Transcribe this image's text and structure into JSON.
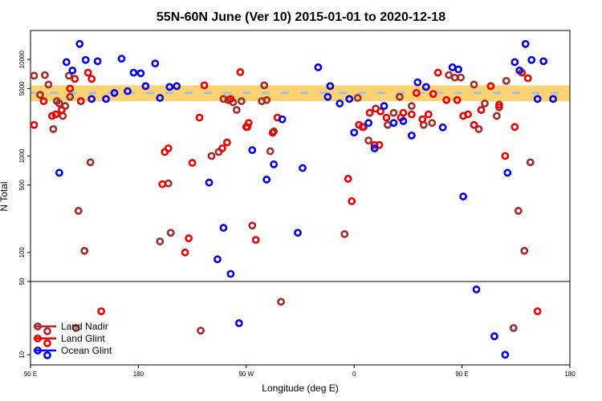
{
  "chart_data": {
    "type": "scatter",
    "title": "55N-60N June (Ver 10)   2015-01-01 to 2020-12-18",
    "xlabel": "Longitude (deg E)",
    "ylabel": "N Total",
    "x_ticks": [
      {
        "value": 90,
        "label": "90 E"
      },
      {
        "value": 180,
        "label": "180"
      },
      {
        "value": 270,
        "label": "90 W"
      },
      {
        "value": 360,
        "label": "0"
      },
      {
        "value": 450,
        "label": "90 E"
      },
      {
        "value": 540,
        "label": "180"
      }
    ],
    "xlim": [
      90,
      540
    ],
    "y_scale": "log",
    "upper_panel": {
      "ylim": [
        50,
        20000
      ],
      "y_ticks": [
        {
          "value": 100,
          "label": "100"
        },
        {
          "value": 500,
          "label": "500"
        },
        {
          "value": 1000,
          "label": "1000"
        },
        {
          "value": 5000,
          "label": "5000"
        },
        {
          "value": 10000,
          "label": "10000"
        }
      ]
    },
    "lower_panel": {
      "ylim": [
        8,
        50
      ],
      "y_ticks": [
        {
          "value": 10,
          "label": "10"
        },
        {
          "value": 50,
          "label": "50"
        }
      ]
    },
    "band": {
      "center": 4500,
      "low": 3700,
      "high": 5400
    },
    "series": [
      {
        "name": "Land Nadir",
        "color": "#a52a2a",
        "points": [
          [
            93,
            6800
          ],
          [
            98,
            4300
          ],
          [
            102,
            6900
          ],
          [
            105,
            5500
          ],
          [
            109,
            1900
          ],
          [
            112,
            3700
          ],
          [
            114,
            3500
          ],
          [
            117,
            2600
          ],
          [
            119,
            3300
          ],
          [
            122,
            6800
          ],
          [
            123,
            4100
          ],
          [
            128,
            18
          ],
          [
            130,
            270
          ],
          [
            135,
            104
          ],
          [
            140,
            860
          ],
          [
            198,
            130
          ],
          [
            205,
            520
          ],
          [
            207,
            160
          ],
          [
            232,
            17
          ],
          [
            241,
            1000
          ],
          [
            247,
            1100
          ],
          [
            251,
            3900
          ],
          [
            255,
            3800
          ],
          [
            259,
            3600
          ],
          [
            262,
            3000
          ],
          [
            266,
            3700
          ],
          [
            271,
            2000
          ],
          [
            275,
            190
          ],
          [
            283,
            3700
          ],
          [
            285,
            5400
          ],
          [
            287,
            3800
          ],
          [
            290,
            1120
          ],
          [
            293,
            1800
          ],
          [
            299,
            32
          ],
          [
            352,
            155
          ],
          [
            363,
            4000
          ],
          [
            368,
            2000
          ],
          [
            372,
            1450
          ],
          [
            378,
            3100
          ],
          [
            388,
            2100
          ],
          [
            393,
            2800
          ],
          [
            398,
            4100
          ],
          [
            408,
            3300
          ],
          [
            418,
            2100
          ],
          [
            425,
            2200
          ],
          [
            439,
            6900
          ],
          [
            444,
            6500
          ],
          [
            449,
            6500
          ],
          [
            460,
            5500
          ],
          [
            464,
            1900
          ],
          [
            469,
            3500
          ],
          [
            479,
            2600
          ],
          [
            481,
            3200
          ],
          [
            487,
            6000
          ],
          [
            493,
            18
          ],
          [
            497,
            270
          ],
          [
            502,
            104
          ],
          [
            507,
            860
          ]
        ]
      },
      {
        "name": "Land Glint",
        "color": "#ee0000",
        "points": [
          [
            93,
            2100
          ],
          [
            101,
            3700
          ],
          [
            108,
            2600
          ],
          [
            111,
            2700
          ],
          [
            116,
            3000
          ],
          [
            123,
            5000
          ],
          [
            127,
            6300
          ],
          [
            132,
            3700
          ],
          [
            138,
            7300
          ],
          [
            141,
            6300
          ],
          [
            149,
            26
          ],
          [
            200,
            510
          ],
          [
            202,
            1100
          ],
          [
            205,
            1200
          ],
          [
            219,
            100
          ],
          [
            222,
            140
          ],
          [
            225,
            850
          ],
          [
            231,
            2500
          ],
          [
            235,
            5400
          ],
          [
            250,
            1200
          ],
          [
            254,
            1380
          ],
          [
            257,
            3900
          ],
          [
            265,
            7400
          ],
          [
            270,
            2000
          ],
          [
            272,
            2200
          ],
          [
            278,
            135
          ],
          [
            292,
            1740
          ],
          [
            296,
            2500
          ],
          [
            355,
            580
          ],
          [
            358,
            340
          ],
          [
            364,
            2100
          ],
          [
            367,
            2000
          ],
          [
            373,
            2800
          ],
          [
            377,
            1300
          ],
          [
            381,
            1300
          ],
          [
            382,
            2900
          ],
          [
            387,
            2500
          ],
          [
            399,
            2500
          ],
          [
            401,
            2800
          ],
          [
            408,
            2700
          ],
          [
            412,
            4500
          ],
          [
            417,
            2400
          ],
          [
            422,
            2700
          ],
          [
            426,
            4400
          ],
          [
            430,
            7300
          ],
          [
            437,
            3800
          ],
          [
            446,
            3800
          ],
          [
            451,
            2600
          ],
          [
            455,
            2700
          ],
          [
            460,
            2100
          ],
          [
            466,
            3000
          ],
          [
            474,
            5300
          ],
          [
            481,
            3400
          ],
          [
            486,
            1000
          ],
          [
            494,
            2000
          ],
          [
            500,
            7300
          ],
          [
            505,
            6400
          ],
          [
            513,
            26
          ]
        ]
      },
      {
        "name": "Ocean Glint",
        "color": "#0000ee",
        "points": [
          [
            114,
            670
          ],
          [
            120,
            9400
          ],
          [
            125,
            7700
          ],
          [
            131,
            14500
          ],
          [
            136,
            9900
          ],
          [
            141,
            3900
          ],
          [
            146,
            9600
          ],
          [
            153,
            3900
          ],
          [
            160,
            4500
          ],
          [
            166,
            10200
          ],
          [
            171,
            4700
          ],
          [
            176,
            7300
          ],
          [
            182,
            7200
          ],
          [
            186,
            5300
          ],
          [
            194,
            9100
          ],
          [
            198,
            4000
          ],
          [
            206,
            5200
          ],
          [
            212,
            5300
          ],
          [
            239,
            530
          ],
          [
            246,
            85
          ],
          [
            251,
            180
          ],
          [
            257,
            60
          ],
          [
            264,
            20
          ],
          [
            275,
            1150
          ],
          [
            287,
            570
          ],
          [
            293,
            820
          ],
          [
            300,
            2400
          ],
          [
            313,
            160
          ],
          [
            317,
            750
          ],
          [
            330,
            8300
          ],
          [
            338,
            4100
          ],
          [
            340,
            5300
          ],
          [
            348,
            3500
          ],
          [
            356,
            3900
          ],
          [
            360,
            1750
          ],
          [
            372,
            2200
          ],
          [
            377,
            1200
          ],
          [
            385,
            3300
          ],
          [
            393,
            2200
          ],
          [
            401,
            2300
          ],
          [
            408,
            1630
          ],
          [
            413,
            5800
          ],
          [
            420,
            5200
          ],
          [
            434,
            1980
          ],
          [
            442,
            8300
          ],
          [
            447,
            7900
          ],
          [
            451,
            380
          ],
          [
            462,
            42
          ],
          [
            477,
            15
          ],
          [
            486,
            10
          ],
          [
            488,
            670
          ],
          [
            494,
            9400
          ],
          [
            498,
            7700
          ],
          [
            503,
            14500
          ],
          [
            508,
            9900
          ],
          [
            513,
            3900
          ],
          [
            518,
            9600
          ],
          [
            526,
            3900
          ]
        ]
      }
    ],
    "legend": {
      "placement": "bottom-left",
      "entries": [
        "Land Nadir",
        "Land Glint",
        "Ocean Glint"
      ]
    }
  }
}
